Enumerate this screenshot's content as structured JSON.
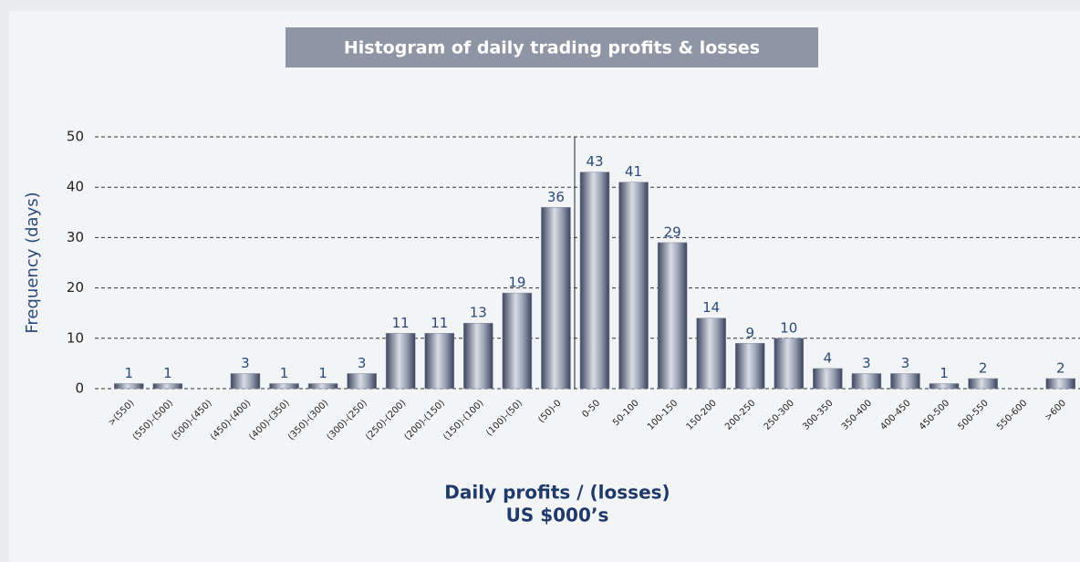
{
  "chart_data": {
    "type": "bar",
    "title": "Histogram of daily trading profits & losses",
    "y_label": "Frequency (days)",
    "x_label": [
      "Daily profits / (losses)",
      "US $000’s"
    ],
    "categories": [
      ">(550)",
      "(550)-(500)",
      "(500)-(450)",
      "(450)-(400)",
      "(400)-(350)",
      "(350)-(300)",
      "(300)-(250)",
      "(250)-(200)",
      "(200)-(150)",
      "(150)-(100)",
      "(100)-(50)",
      "(50)-0",
      "0-50",
      "50-100",
      "100-150",
      "150-200",
      "200-250",
      "250-300",
      "300-350",
      "350-400",
      "400-450",
      "450-500",
      "500-550",
      "550-600",
      ">600"
    ],
    "values": [
      1,
      1,
      0,
      3,
      1,
      1,
      3,
      11,
      11,
      13,
      19,
      36,
      43,
      41,
      29,
      14,
      9,
      10,
      4,
      3,
      3,
      1,
      2,
      0,
      2
    ],
    "color": "#7f899e",
    "ylim": [
      0,
      50
    ],
    "yticks": [
      0,
      10,
      20,
      30,
      40,
      50
    ],
    "grid": true
  }
}
